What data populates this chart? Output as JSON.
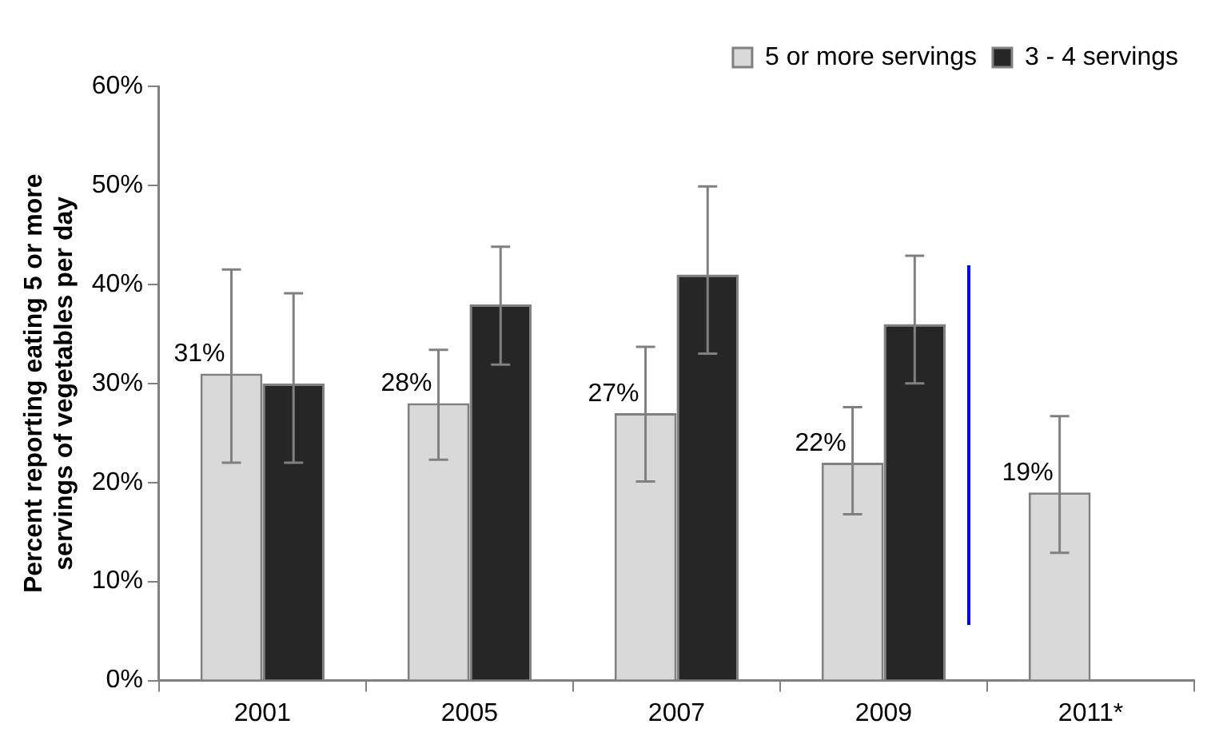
{
  "chart_data": {
    "type": "bar",
    "ylabel": "Percent reporting eating 5 or more servings of vegetables per day",
    "categories": [
      "2001",
      "2005",
      "2007",
      "2009",
      "2011*"
    ],
    "series": [
      {
        "name": "5 or more servings",
        "color": "#d9d9d9",
        "values": [
          31,
          28,
          27,
          22,
          19
        ],
        "errors": [
          [
            22,
            41.5
          ],
          [
            22.3,
            33.4
          ],
          [
            20.1,
            33.7
          ],
          [
            16.8,
            27.6
          ],
          [
            12.9,
            26.7
          ]
        ],
        "value_labels": [
          "31%",
          "28%",
          "27%",
          "22%",
          "19%"
        ]
      },
      {
        "name": "3 - 4 servings",
        "color": "#262626",
        "values": [
          30,
          38,
          41,
          36,
          null
        ],
        "errors": [
          [
            22,
            39.1
          ],
          [
            31.9,
            43.8
          ],
          [
            33,
            49.9
          ],
          [
            30,
            42.9
          ],
          null
        ]
      }
    ],
    "ylim": [
      0,
      60
    ],
    "yticks": [
      {
        "value": 0,
        "label": "0%"
      },
      {
        "value": 10,
        "label": "10%"
      },
      {
        "value": 20,
        "label": "20%"
      },
      {
        "value": 30,
        "label": "30%"
      },
      {
        "value": 40,
        "label": "40%"
      },
      {
        "value": 50,
        "label": "50%"
      },
      {
        "value": 60,
        "label": "60%"
      }
    ],
    "legend": "top right"
  }
}
